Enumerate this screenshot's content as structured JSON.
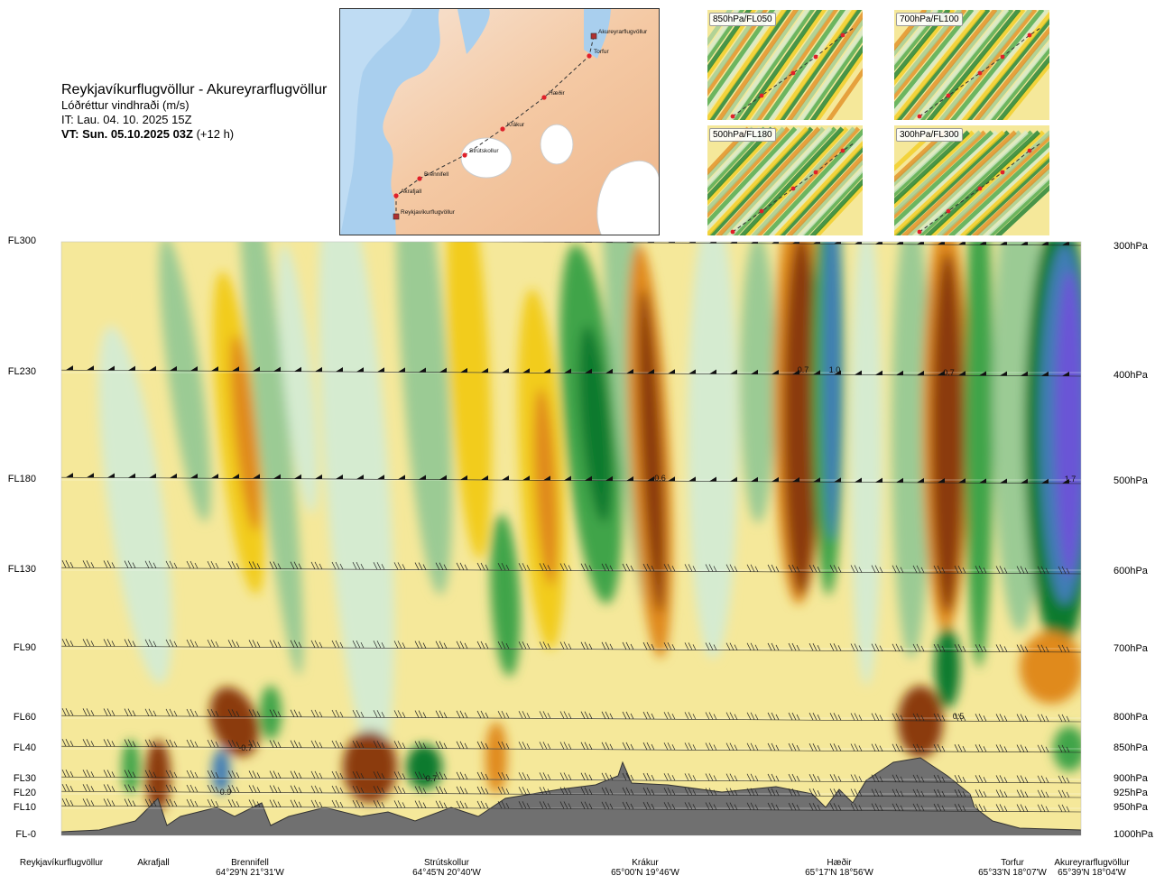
{
  "header": {
    "title": "Reykjavíkurflugvöllur - Akureyrarflugvöllur",
    "subtitle": "Lóðréttur vindhraði (m/s)",
    "issue_time": "IT: Lau. 04. 10. 2025 15Z",
    "valid_time_bold": "VT: Sun. 05.10.2025 03Z",
    "valid_time_suffix": " (+12 h)"
  },
  "map": {
    "route_points": [
      "Akureyrarflugvöllur",
      "Torfur",
      "Hæðir",
      "Krákur",
      "Strútskollur",
      "Brennifell",
      "Akrafjall",
      "Reykjavíkurflugvöllur"
    ]
  },
  "mini_maps": [
    {
      "label": "850hPa/FL050"
    },
    {
      "label": "700hPa/FL100"
    },
    {
      "label": "500hPa/FL180"
    },
    {
      "label": "300hPa/FL300"
    }
  ],
  "levels_left": [
    "FL300",
    "FL230",
    "FL180",
    "FL130",
    "FL90",
    "FL60",
    "FL40",
    "FL30",
    "FL20",
    "FL10",
    "FL-0"
  ],
  "levels_right": [
    "300hPa",
    "400hPa",
    "500hPa",
    "600hPa",
    "700hPa",
    "800hPa",
    "850hPa",
    "900hPa",
    "925hPa",
    "950hPa",
    "1000hPa"
  ],
  "stations": [
    {
      "name": "Reykjavíkurflugvöllur",
      "coord": ""
    },
    {
      "name": "Akrafjall",
      "coord": ""
    },
    {
      "name": "Brennifell",
      "coord": "64°29'N 21°31'W"
    },
    {
      "name": "Strútskollur",
      "coord": "64°45'N 20°40'W"
    },
    {
      "name": "Krákur",
      "coord": "65°00'N 19°46'W"
    },
    {
      "name": "Hæðir",
      "coord": "65°17'N 18°56'W"
    },
    {
      "name": "Torfur",
      "coord": "65°33'N 18°07'W"
    },
    {
      "name": "Akureyrarflugvöllur",
      "coord": "65°39'N 18°04'W"
    }
  ],
  "chart_data": {
    "type": "heatmap",
    "title": "Reykjavíkurflugvöllur - Akureyrarflugvöllur",
    "subtitle": "Lóðréttur vindhraði (m/s)",
    "x_categories": [
      "Reykjavíkurflugvöllur",
      "Akrafjall",
      "Brennifell",
      "Strútskollur",
      "Krákur",
      "Hæðir",
      "Torfur",
      "Akureyrarflugvöllur"
    ],
    "y_levels": [
      "FL300",
      "FL230",
      "FL180",
      "FL130",
      "FL90",
      "FL60",
      "FL40",
      "FL30",
      "FL20",
      "FL10",
      "FL-0"
    ],
    "annotations": [
      {
        "text": "-0.7",
        "near": "Brennifell",
        "level": "FL40"
      },
      {
        "text": "0.9",
        "near": "Brennifell",
        "level": "FL20"
      },
      {
        "text": "0.7",
        "near": "Strútskollur",
        "level": "FL30"
      },
      {
        "text": "-0.6",
        "near": "Krákur",
        "level": "FL180"
      },
      {
        "text": "0.7",
        "near": "Hæðir",
        "level": "FL230"
      },
      {
        "text": "1.0",
        "near": "Hæðir",
        "level": "FL230"
      },
      {
        "text": "-0.7",
        "near": "Torfur",
        "level": "FL230"
      },
      {
        "text": "0.5",
        "near": "Torfur",
        "level": "FL60"
      },
      {
        "text": "1.7",
        "near": "Akureyrarflugvöllur",
        "level": "FL180"
      }
    ],
    "colors": {
      "strong_down": "#8B3A0F",
      "down": "#E08A1E",
      "weak_down": "#F2CC1C",
      "very_weak_down": "#F5E89A",
      "very_weak_up": "#D5EBD0",
      "weak_up": "#9BCB94",
      "up": "#3FA44A",
      "strong_up": "#0E7A2D",
      "very_strong_up": "#3F7DB5",
      "extreme_up": "#6B55D6",
      "terrain": "#707070"
    }
  }
}
